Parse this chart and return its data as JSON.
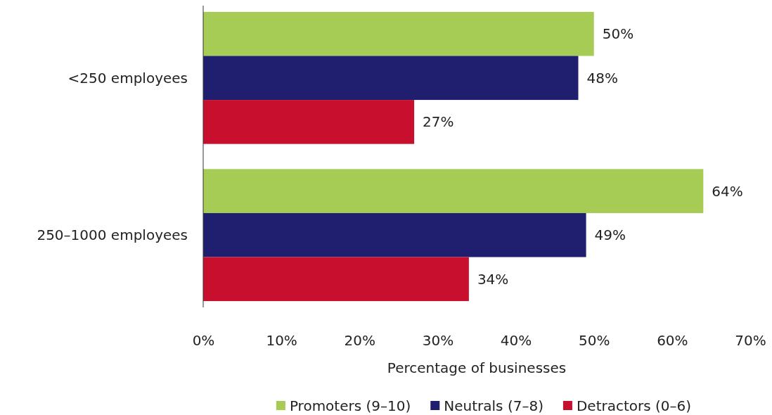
{
  "chart_data": {
    "type": "bar",
    "orientation": "horizontal",
    "xlabel": "Percentage of businesses",
    "categories": [
      "<250 employees",
      "250–1000 employees"
    ],
    "series": [
      {
        "name": "Promoters (9–10)",
        "color": "#a6cc55",
        "values": [
          50,
          64
        ],
        "value_labels": [
          "50%",
          "64%"
        ]
      },
      {
        "name": "Neutrals (7–8)",
        "color": "#201e6e",
        "values": [
          48,
          49
        ],
        "value_labels": [
          "48%",
          "49%"
        ]
      },
      {
        "name": "Detractors (0–6)",
        "color": "#c8102e",
        "values": [
          27,
          34
        ],
        "value_labels": [
          "27%",
          "34%"
        ]
      }
    ],
    "xlim": [
      0,
      70
    ],
    "xticks": [
      {
        "value": 0,
        "label": "0%"
      },
      {
        "value": 10,
        "label": "10%"
      },
      {
        "value": 20,
        "label": "20%"
      },
      {
        "value": 30,
        "label": "30%"
      },
      {
        "value": 40,
        "label": "40%"
      },
      {
        "value": 50,
        "label": "50%"
      },
      {
        "value": 60,
        "label": "60%"
      },
      {
        "value": 70,
        "label": "70%"
      }
    ],
    "grid": false,
    "legend": "bottom"
  }
}
